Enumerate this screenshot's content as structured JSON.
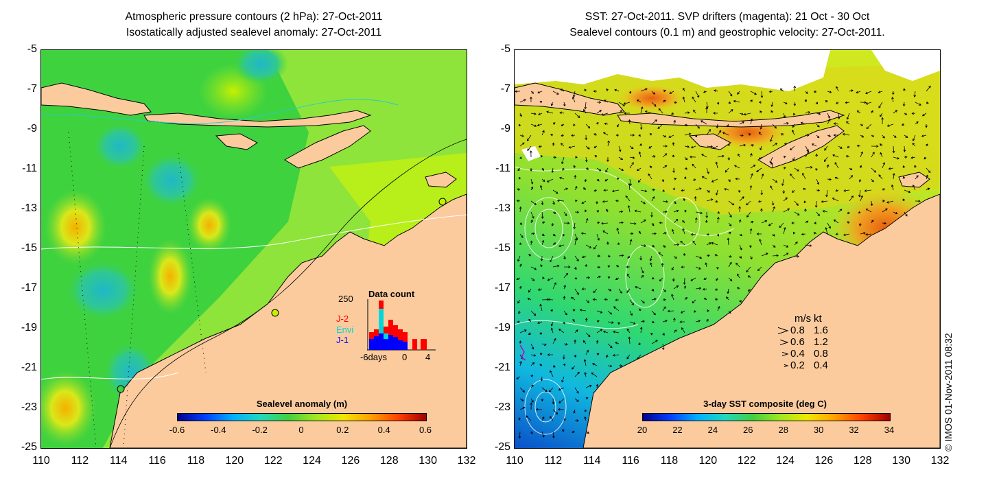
{
  "left_panel": {
    "title_line1": "Atmospheric pressure contours (2 hPa): 27-Oct-2011",
    "title_line2": "Isostatically adjusted sealevel anomaly: 27-Oct-2011",
    "colorbar": {
      "title": "Sealevel anomaly (m)",
      "tick_labels": [
        "-0.6",
        "-0.4",
        "-0.2",
        "0",
        "0.2",
        "0.4",
        "0.6"
      ]
    },
    "data_count": {
      "title": "Data count",
      "max_label": "250",
      "legend": [
        "J-2",
        "Envi",
        "J-1"
      ],
      "legend_colors": [
        "#ff0000",
        "#00d8d8",
        "#0000ff"
      ],
      "x_labels": [
        "-6days",
        "0",
        "4"
      ]
    }
  },
  "right_panel": {
    "title_line1": "SST: 27-Oct-2011. SVP drifters (magenta): 21 Oct - 30 Oct",
    "title_line2": "Sealevel contours (0.1 m) and geostrophic velocity: 27-Oct-2011.",
    "colorbar": {
      "title": "3-day SST composite (deg C)",
      "tick_labels": [
        "20",
        "22",
        "24",
        "26",
        "28",
        "30",
        "32",
        "34"
      ]
    },
    "velocity_legend": {
      "header": [
        "m/s",
        "kt"
      ],
      "rows": [
        [
          "0.8",
          "1.6"
        ],
        [
          "0.6",
          "1.2"
        ],
        [
          "0.4",
          "0.8"
        ],
        [
          "0.2",
          "0.4"
        ]
      ]
    }
  },
  "axes": {
    "y_labels": [
      "-5",
      "-7",
      "-9",
      "-11",
      "-13",
      "-15",
      "-17",
      "-19",
      "-21",
      "-23",
      "-25"
    ],
    "x_labels": [
      "110",
      "112",
      "114",
      "116",
      "118",
      "120",
      "122",
      "124",
      "126",
      "128",
      "130",
      "132"
    ]
  },
  "copyright": "© IMOS 01-Nov-2011 08:32",
  "colors": {
    "land": "#fbcb9e",
    "ocean_left": "#3ed43e",
    "ocean_right": "#8fe23a"
  }
}
